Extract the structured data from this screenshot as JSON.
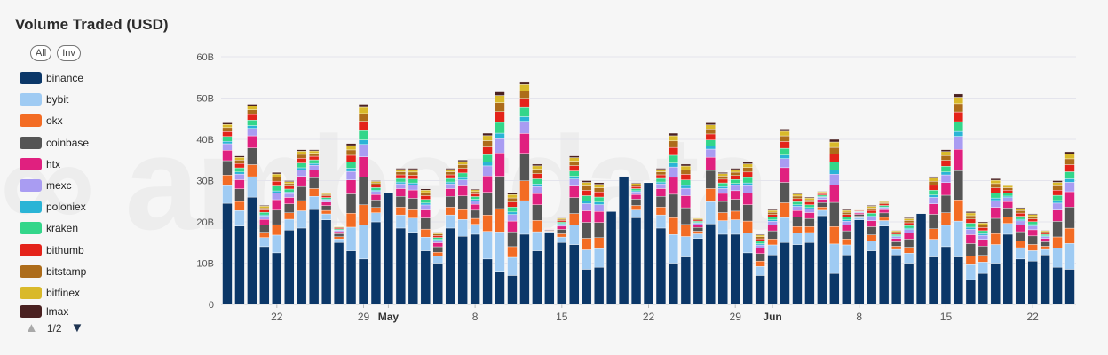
{
  "title": "Volume Traded (USD)",
  "toggles": {
    "all": "All",
    "inv": "Inv"
  },
  "legend": [
    {
      "name": "binance",
      "color": "#0b3768"
    },
    {
      "name": "bybit",
      "color": "#9fcbf3"
    },
    {
      "name": "okx",
      "color": "#f36c24"
    },
    {
      "name": "coinbase",
      "color": "#555555"
    },
    {
      "name": "htx",
      "color": "#e0207f"
    },
    {
      "name": "mexc",
      "color": "#a99cf2"
    },
    {
      "name": "poloniex",
      "color": "#2ab4d6"
    },
    {
      "name": "kraken",
      "color": "#33d68a"
    },
    {
      "name": "bithumb",
      "color": "#e4231a"
    },
    {
      "name": "bitstamp",
      "color": "#ad6c1a"
    },
    {
      "name": "bitfinex",
      "color": "#d9b92a"
    },
    {
      "name": "lmax",
      "color": "#4a2121"
    }
  ],
  "pager": {
    "text": "1/2"
  },
  "chart_data": {
    "type": "bar",
    "stacked": true,
    "title": "Volume Traded (USD)",
    "yticks": [
      "0",
      "10B",
      "20B",
      "30B",
      "40B",
      "50B",
      "60B"
    ],
    "ylim": [
      0,
      60
    ],
    "y_unit": "B USD",
    "x_range": [
      "2024-04-18",
      "2024-07-16"
    ],
    "xticks": [
      {
        "label": "22",
        "date": "2024-04-22"
      },
      {
        "label": "29",
        "date": "2024-04-29"
      },
      {
        "label": "May",
        "date": "2024-05-01",
        "bold": true
      },
      {
        "label": "8",
        "date": "2024-05-08"
      },
      {
        "label": "15",
        "date": "2024-05-15"
      },
      {
        "label": "22",
        "date": "2024-05-22"
      },
      {
        "label": "29",
        "date": "2024-05-29"
      },
      {
        "label": "Jun",
        "date": "2024-06-01",
        "bold": true
      },
      {
        "label": "8",
        "date": "2024-06-08"
      },
      {
        "label": "15",
        "date": "2024-06-15"
      },
      {
        "label": "22",
        "date": "2024-06-22"
      },
      {
        "label": "29",
        "date": "2024-06-29"
      },
      {
        "label": "Jul",
        "date": "2024-07-01",
        "bold": true
      },
      {
        "label": "8",
        "date": "2024-07-08"
      },
      {
        "label": "15",
        "date": "2024-07-15"
      }
    ],
    "series_order": [
      "binance",
      "bybit",
      "okx",
      "coinbase",
      "htx",
      "mexc",
      "poloniex",
      "kraken",
      "bithumb",
      "bitstamp",
      "bitfinex",
      "lmax"
    ],
    "totals": [
      44,
      36,
      48.5,
      24,
      32,
      30,
      37.5,
      37.5,
      27,
      19,
      39,
      48.5,
      30,
      25,
      33,
      33,
      28,
      17.5,
      33,
      35,
      28,
      41.5,
      51.5,
      27,
      54,
      34,
      18.5,
      21,
      36,
      30,
      29.5,
      18,
      29.5,
      29.5,
      30,
      33,
      41.5,
      34,
      21,
      44,
      32,
      33,
      34.5,
      17,
      23,
      42.5,
      27,
      26,
      27.5,
      40,
      23,
      23,
      24,
      25,
      18,
      21,
      20.5,
      31,
      37.5,
      51,
      22.5,
      20,
      30.5,
      29,
      23.5,
      22,
      18,
      30,
      37
    ],
    "binance": [
      24.5,
      19,
      26,
      14,
      12.5,
      18,
      18.5,
      23,
      20.5,
      15,
      13,
      11,
      20,
      27,
      18.5,
      17.5,
      13,
      10,
      18.5,
      16.5,
      17,
      11,
      8,
      7,
      17,
      13,
      17.5,
      15,
      14.5,
      8.5,
      9,
      22.5,
      31,
      21,
      29.5,
      18.5,
      10,
      11.5,
      16,
      19.5,
      17,
      17,
      12.5,
      7,
      12,
      15,
      14.5,
      15,
      21.5,
      7.5,
      12,
      20.5,
      13,
      19,
      12,
      10,
      22,
      11.5,
      14,
      11.5,
      6,
      7.5,
      10,
      17,
      11,
      10.5,
      12,
      9,
      8.5
    ]
  }
}
